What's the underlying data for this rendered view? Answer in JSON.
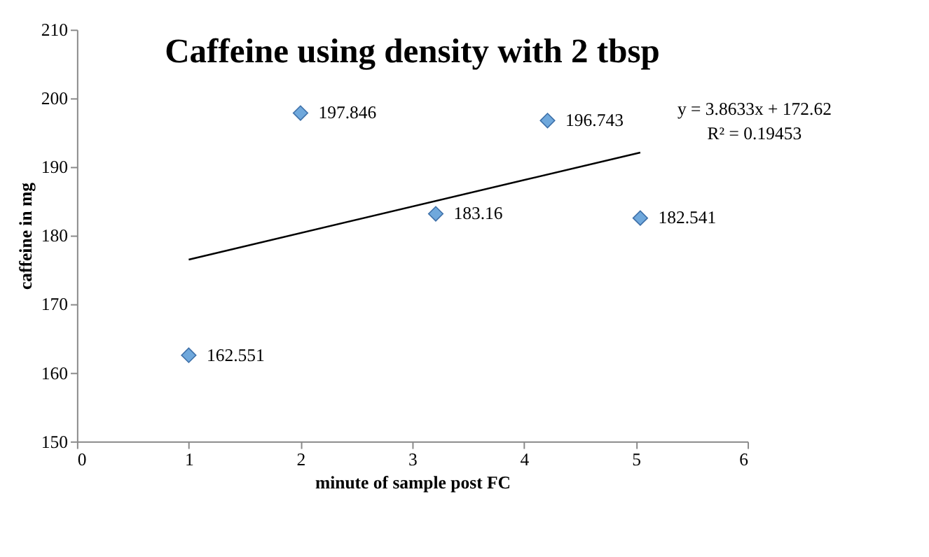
{
  "chart_data": {
    "type": "scatter",
    "title": "Caffeine using density with 2 tbsp",
    "xlabel": "minute of sample post FC",
    "ylabel": "caffeine in mg",
    "series": [
      {
        "type": "scatter",
        "x": [
          1,
          2,
          3.21,
          4.21,
          5.04
        ],
        "values": [
          162.551,
          197.846,
          183.16,
          196.743,
          182.541
        ],
        "value_labels": [
          "162.551",
          "197.846",
          "183.16",
          "196.743",
          "182.541"
        ],
        "color": "#6fa8dc",
        "marker": "diamond"
      },
      {
        "type": "line",
        "x": [
          1,
          5.04
        ],
        "values": [
          176.5,
          192.1
        ],
        "color": "#000000",
        "line_style": "solid"
      }
    ],
    "annotations": [
      "y = 3.8633x + 172.62",
      "R² = 0.19453"
    ],
    "xlim": [
      0,
      6
    ],
    "xticks": [
      0,
      1,
      2,
      3,
      4,
      5,
      6
    ],
    "ylim": [
      150,
      210
    ],
    "yticks": [
      150,
      160,
      170,
      180,
      190,
      200,
      210
    ],
    "grid": false
  }
}
